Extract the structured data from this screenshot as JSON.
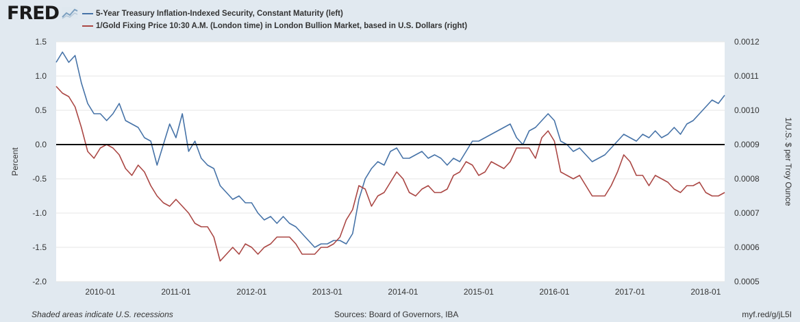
{
  "header": {
    "logo_text": "FRED",
    "logo_icon": "chart-line-icon"
  },
  "colors": {
    "series1": "#4572a7",
    "series2": "#aa4643",
    "plot_bg": "#ffffff",
    "page_bg": "#e1e9f0",
    "zero_line": "#000000"
  },
  "footer": {
    "note": "Shaded areas indicate U.S. recessions",
    "sources": "Sources: Board of Governors, IBA",
    "link": "myf.red/g/jL5I"
  },
  "chart_data": {
    "type": "line",
    "x_tick_labels": [
      "2010-01",
      "2011-01",
      "2012-01",
      "2013-01",
      "2014-01",
      "2015-01",
      "2016-01",
      "2017-01",
      "2018-01"
    ],
    "x_range": [
      "2009-06",
      "2018-04"
    ],
    "y_left": {
      "label": "Percent",
      "lim": [
        -2.0,
        1.5
      ],
      "ticks": [
        "1.5",
        "1.0",
        "0.5",
        "0.0",
        "-0.5",
        "-1.0",
        "-1.5",
        "-2.0"
      ]
    },
    "y_right": {
      "label": "1/U.S. $ per Troy Ounce",
      "lim": [
        0.0005,
        0.0012
      ],
      "ticks": [
        "0.0012",
        "0.0011",
        "0.0010",
        "0.0009",
        "0.0008",
        "0.0007",
        "0.0006",
        "0.0005"
      ]
    },
    "grid": "horizontal",
    "reference_line": 0.0,
    "series": [
      {
        "name": "5-Year Treasury Inflation-Indexed Security, Constant Maturity (left)",
        "axis": "left",
        "color": "#4572a7",
        "points": [
          [
            "2009-06",
            1.2
          ],
          [
            "2009-07",
            1.35
          ],
          [
            "2009-08",
            1.2
          ],
          [
            "2009-09",
            1.3
          ],
          [
            "2009-10",
            0.9
          ],
          [
            "2009-11",
            0.6
          ],
          [
            "2009-12",
            0.45
          ],
          [
            "2010-01",
            0.45
          ],
          [
            "2010-02",
            0.35
          ],
          [
            "2010-03",
            0.45
          ],
          [
            "2010-04",
            0.6
          ],
          [
            "2010-05",
            0.35
          ],
          [
            "2010-06",
            0.3
          ],
          [
            "2010-07",
            0.25
          ],
          [
            "2010-08",
            0.1
          ],
          [
            "2010-09",
            0.05
          ],
          [
            "2010-10",
            -0.3
          ],
          [
            "2010-11",
            0.0
          ],
          [
            "2010-12",
            0.3
          ],
          [
            "2011-01",
            0.1
          ],
          [
            "2011-02",
            0.45
          ],
          [
            "2011-03",
            -0.1
          ],
          [
            "2011-04",
            0.05
          ],
          [
            "2011-05",
            -0.2
          ],
          [
            "2011-06",
            -0.3
          ],
          [
            "2011-07",
            -0.35
          ],
          [
            "2011-08",
            -0.6
          ],
          [
            "2011-09",
            -0.7
          ],
          [
            "2011-10",
            -0.8
          ],
          [
            "2011-11",
            -0.75
          ],
          [
            "2011-12",
            -0.85
          ],
          [
            "2012-01",
            -0.85
          ],
          [
            "2012-02",
            -1.0
          ],
          [
            "2012-03",
            -1.1
          ],
          [
            "2012-04",
            -1.05
          ],
          [
            "2012-05",
            -1.15
          ],
          [
            "2012-06",
            -1.05
          ],
          [
            "2012-07",
            -1.15
          ],
          [
            "2012-08",
            -1.2
          ],
          [
            "2012-09",
            -1.3
          ],
          [
            "2012-10",
            -1.4
          ],
          [
            "2012-11",
            -1.5
          ],
          [
            "2012-12",
            -1.45
          ],
          [
            "2013-01",
            -1.45
          ],
          [
            "2013-02",
            -1.4
          ],
          [
            "2013-03",
            -1.4
          ],
          [
            "2013-04",
            -1.45
          ],
          [
            "2013-05",
            -1.3
          ],
          [
            "2013-06",
            -0.8
          ],
          [
            "2013-07",
            -0.5
          ],
          [
            "2013-08",
            -0.35
          ],
          [
            "2013-09",
            -0.25
          ],
          [
            "2013-10",
            -0.3
          ],
          [
            "2013-11",
            -0.1
          ],
          [
            "2013-12",
            -0.05
          ],
          [
            "2014-01",
            -0.2
          ],
          [
            "2014-02",
            -0.2
          ],
          [
            "2014-03",
            -0.15
          ],
          [
            "2014-04",
            -0.1
          ],
          [
            "2014-05",
            -0.2
          ],
          [
            "2014-06",
            -0.15
          ],
          [
            "2014-07",
            -0.2
          ],
          [
            "2014-08",
            -0.3
          ],
          [
            "2014-09",
            -0.2
          ],
          [
            "2014-10",
            -0.25
          ],
          [
            "2014-11",
            -0.1
          ],
          [
            "2014-12",
            0.05
          ],
          [
            "2015-01",
            0.05
          ],
          [
            "2015-02",
            0.1
          ],
          [
            "2015-03",
            0.15
          ],
          [
            "2015-04",
            0.2
          ],
          [
            "2015-05",
            0.25
          ],
          [
            "2015-06",
            0.3
          ],
          [
            "2015-07",
            0.1
          ],
          [
            "2015-08",
            0.0
          ],
          [
            "2015-09",
            0.2
          ],
          [
            "2015-10",
            0.25
          ],
          [
            "2015-11",
            0.35
          ],
          [
            "2015-12",
            0.45
          ],
          [
            "2016-01",
            0.35
          ],
          [
            "2016-02",
            0.05
          ],
          [
            "2016-03",
            0.0
          ],
          [
            "2016-04",
            -0.1
          ],
          [
            "2016-05",
            -0.05
          ],
          [
            "2016-06",
            -0.15
          ],
          [
            "2016-07",
            -0.25
          ],
          [
            "2016-08",
            -0.2
          ],
          [
            "2016-09",
            -0.15
          ],
          [
            "2016-10",
            -0.05
          ],
          [
            "2016-11",
            0.05
          ],
          [
            "2016-12",
            0.15
          ],
          [
            "2017-01",
            0.1
          ],
          [
            "2017-02",
            0.05
          ],
          [
            "2017-03",
            0.15
          ],
          [
            "2017-04",
            0.1
          ],
          [
            "2017-05",
            0.2
          ],
          [
            "2017-06",
            0.1
          ],
          [
            "2017-07",
            0.15
          ],
          [
            "2017-08",
            0.25
          ],
          [
            "2017-09",
            0.15
          ],
          [
            "2017-10",
            0.3
          ],
          [
            "2017-11",
            0.35
          ],
          [
            "2017-12",
            0.45
          ],
          [
            "2018-01",
            0.55
          ],
          [
            "2018-02",
            0.65
          ],
          [
            "2018-03",
            0.6
          ],
          [
            "2018-04",
            0.72
          ]
        ]
      },
      {
        "name": "1/Gold Fixing Price 10:30 A.M. (London time) in London Bullion Market, based in U.S. Dollars (right)",
        "axis": "right",
        "color": "#aa4643",
        "points": [
          [
            "2009-06",
            0.00107
          ],
          [
            "2009-07",
            0.00105
          ],
          [
            "2009-08",
            0.00104
          ],
          [
            "2009-09",
            0.00101
          ],
          [
            "2009-10",
            0.00095
          ],
          [
            "2009-11",
            0.00088
          ],
          [
            "2009-12",
            0.00086
          ],
          [
            "2010-01",
            0.00089
          ],
          [
            "2010-02",
            0.0009
          ],
          [
            "2010-03",
            0.00089
          ],
          [
            "2010-04",
            0.00087
          ],
          [
            "2010-05",
            0.00083
          ],
          [
            "2010-06",
            0.00081
          ],
          [
            "2010-07",
            0.00084
          ],
          [
            "2010-08",
            0.00082
          ],
          [
            "2010-09",
            0.00078
          ],
          [
            "2010-10",
            0.00075
          ],
          [
            "2010-11",
            0.00073
          ],
          [
            "2010-12",
            0.00072
          ],
          [
            "2011-01",
            0.00074
          ],
          [
            "2011-02",
            0.00072
          ],
          [
            "2011-03",
            0.0007
          ],
          [
            "2011-04",
            0.00067
          ],
          [
            "2011-05",
            0.00066
          ],
          [
            "2011-06",
            0.00066
          ],
          [
            "2011-07",
            0.00063
          ],
          [
            "2011-08",
            0.00056
          ],
          [
            "2011-09",
            0.00058
          ],
          [
            "2011-10",
            0.0006
          ],
          [
            "2011-11",
            0.00058
          ],
          [
            "2011-12",
            0.00061
          ],
          [
            "2012-01",
            0.0006
          ],
          [
            "2012-02",
            0.00058
          ],
          [
            "2012-03",
            0.0006
          ],
          [
            "2012-04",
            0.00061
          ],
          [
            "2012-05",
            0.00063
          ],
          [
            "2012-06",
            0.00063
          ],
          [
            "2012-07",
            0.00063
          ],
          [
            "2012-08",
            0.00061
          ],
          [
            "2012-09",
            0.00058
          ],
          [
            "2012-10",
            0.00058
          ],
          [
            "2012-11",
            0.00058
          ],
          [
            "2012-12",
            0.0006
          ],
          [
            "2013-01",
            0.0006
          ],
          [
            "2013-02",
            0.00061
          ],
          [
            "2013-03",
            0.00063
          ],
          [
            "2013-04",
            0.00068
          ],
          [
            "2013-05",
            0.00071
          ],
          [
            "2013-06",
            0.00078
          ],
          [
            "2013-07",
            0.00077
          ],
          [
            "2013-08",
            0.00072
          ],
          [
            "2013-09",
            0.00075
          ],
          [
            "2013-10",
            0.00076
          ],
          [
            "2013-11",
            0.00079
          ],
          [
            "2013-12",
            0.00082
          ],
          [
            "2014-01",
            0.0008
          ],
          [
            "2014-02",
            0.00076
          ],
          [
            "2014-03",
            0.00075
          ],
          [
            "2014-04",
            0.00077
          ],
          [
            "2014-05",
            0.00078
          ],
          [
            "2014-06",
            0.00076
          ],
          [
            "2014-07",
            0.00076
          ],
          [
            "2014-08",
            0.00077
          ],
          [
            "2014-09",
            0.00081
          ],
          [
            "2014-10",
            0.00082
          ],
          [
            "2014-11",
            0.00085
          ],
          [
            "2014-12",
            0.00084
          ],
          [
            "2015-01",
            0.00081
          ],
          [
            "2015-02",
            0.00082
          ],
          [
            "2015-03",
            0.00085
          ],
          [
            "2015-04",
            0.00084
          ],
          [
            "2015-05",
            0.00083
          ],
          [
            "2015-06",
            0.00085
          ],
          [
            "2015-07",
            0.00089
          ],
          [
            "2015-08",
            0.00089
          ],
          [
            "2015-09",
            0.00089
          ],
          [
            "2015-10",
            0.00086
          ],
          [
            "2015-11",
            0.00092
          ],
          [
            "2015-12",
            0.00094
          ],
          [
            "2016-01",
            0.00091
          ],
          [
            "2016-02",
            0.00082
          ],
          [
            "2016-03",
            0.00081
          ],
          [
            "2016-04",
            0.0008
          ],
          [
            "2016-05",
            0.00081
          ],
          [
            "2016-06",
            0.00078
          ],
          [
            "2016-07",
            0.00075
          ],
          [
            "2016-08",
            0.00075
          ],
          [
            "2016-09",
            0.00075
          ],
          [
            "2016-10",
            0.00078
          ],
          [
            "2016-11",
            0.00082
          ],
          [
            "2016-12",
            0.00087
          ],
          [
            "2017-01",
            0.00085
          ],
          [
            "2017-02",
            0.00081
          ],
          [
            "2017-03",
            0.00081
          ],
          [
            "2017-04",
            0.00078
          ],
          [
            "2017-05",
            0.00081
          ],
          [
            "2017-06",
            0.0008
          ],
          [
            "2017-07",
            0.00079
          ],
          [
            "2017-08",
            0.00077
          ],
          [
            "2017-09",
            0.00076
          ],
          [
            "2017-10",
            0.00078
          ],
          [
            "2017-11",
            0.00078
          ],
          [
            "2017-12",
            0.00079
          ],
          [
            "2018-01",
            0.00076
          ],
          [
            "2018-02",
            0.00075
          ],
          [
            "2018-03",
            0.00075
          ],
          [
            "2018-04",
            0.00076
          ]
        ]
      }
    ]
  }
}
